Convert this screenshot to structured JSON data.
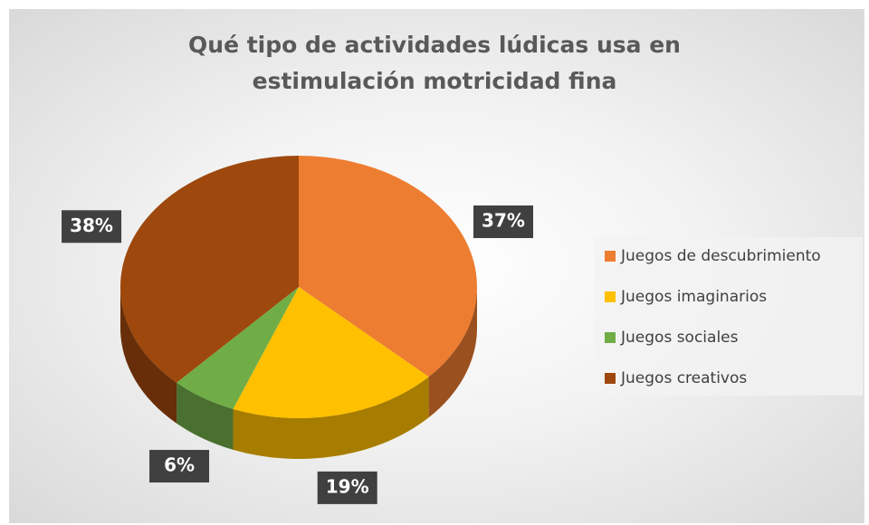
{
  "chart_data": {
    "type": "pie3d",
    "title": "Qué tipo de actividades lúdicas usa en estimulación motricidad fina",
    "categories": [
      "Juegos de descubrimiento",
      "Juegos imaginarios",
      "Juegos sociales",
      "Juegos creativos"
    ],
    "values": [
      37,
      19,
      6,
      38
    ],
    "value_labels": [
      "37%",
      "19%",
      "6%",
      "38%"
    ],
    "colors": [
      "#ED7D31",
      "#FFC000",
      "#70AD47",
      "#9E480E"
    ],
    "legend": "right"
  }
}
